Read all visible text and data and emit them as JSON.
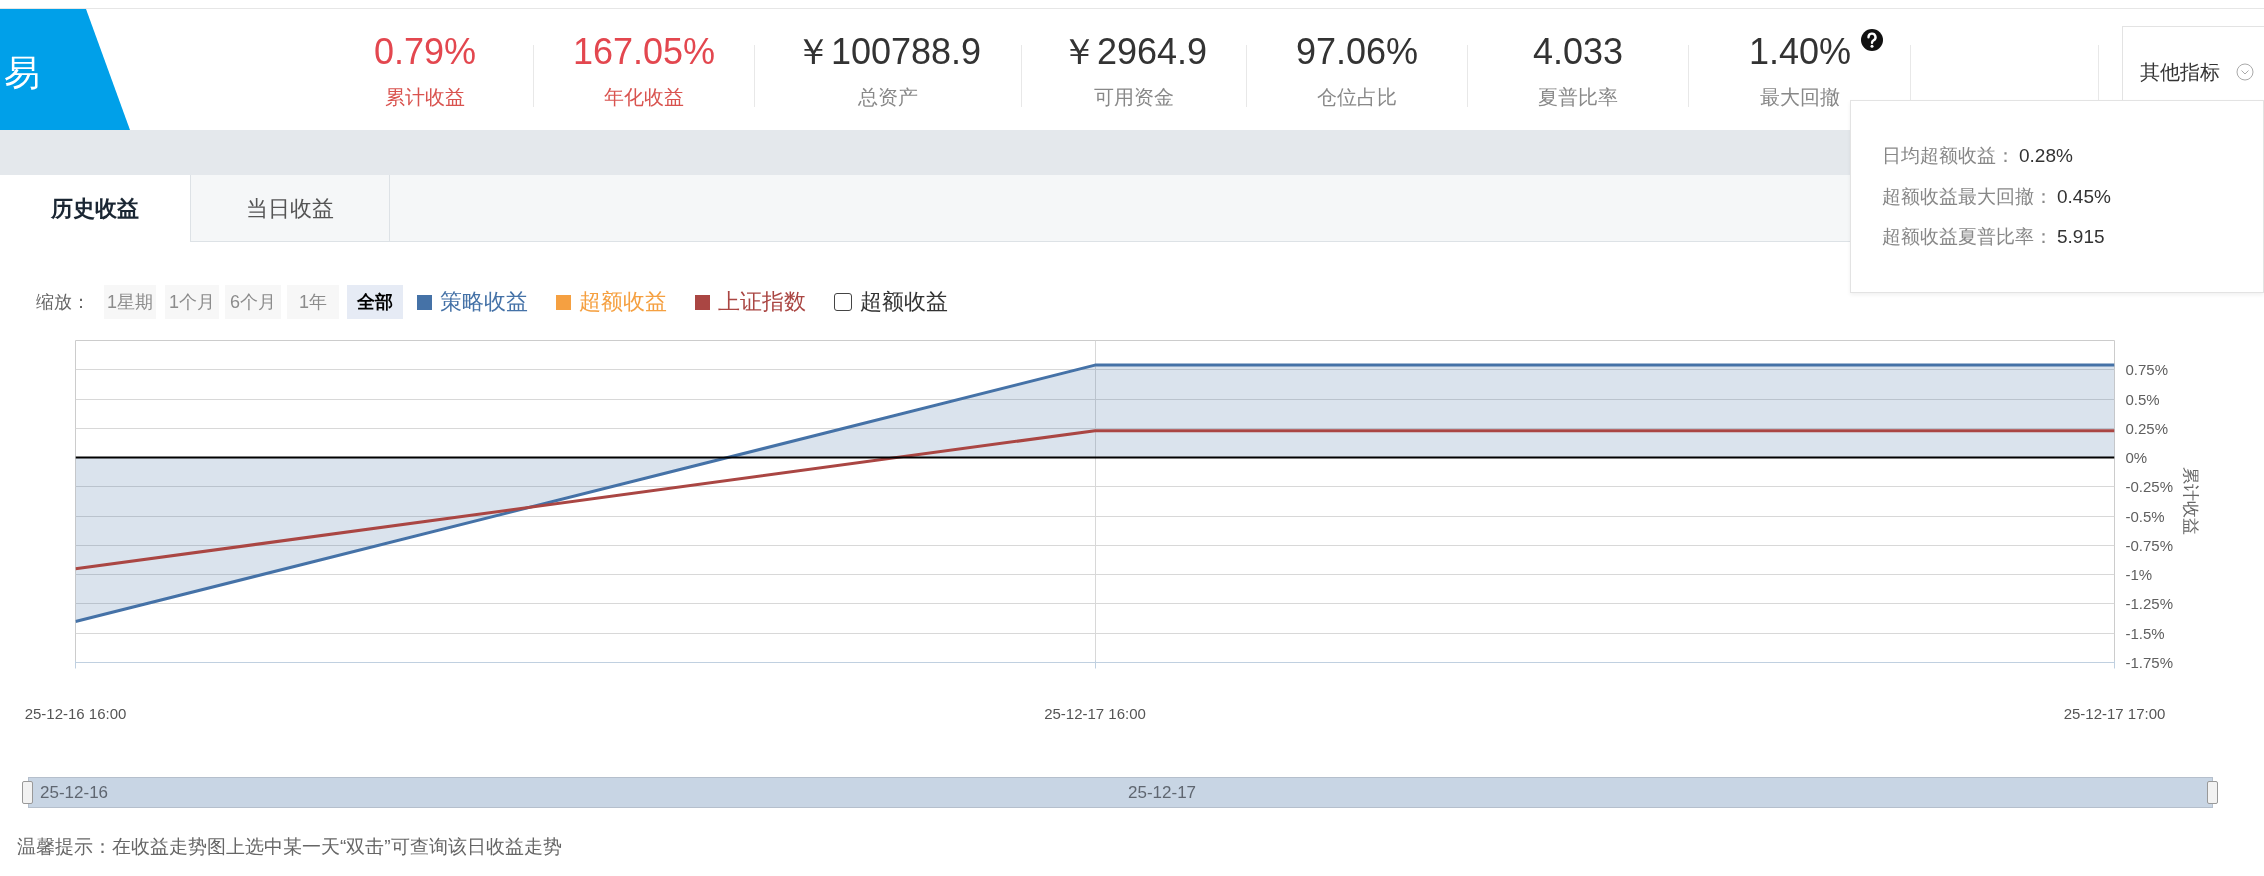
{
  "chart_data": {
    "type": "area",
    "categories": [
      "25-12-16 16:00",
      "25-12-17 16:00",
      "25-12-17 17:00"
    ],
    "series": [
      {
        "name": "策略收益",
        "color": "#4572a7",
        "values": [
          -1.4,
          0.79,
          0.79
        ]
      },
      {
        "name": "超额收益",
        "type": "line",
        "color": "#f5a041",
        "values": [
          null,
          null,
          null
        ]
      },
      {
        "name": "上证指数",
        "type": "line",
        "color": "#aa4643",
        "values": [
          -0.95,
          0.23,
          0.23
        ]
      }
    ],
    "ylabel": "累计收益",
    "ylim": [
      -1.75,
      1.0
    ],
    "yticks": [
      {
        "value": -1.75,
        "label": "-1.75%"
      },
      {
        "value": -1.5,
        "label": "-1.5%"
      },
      {
        "value": -1.25,
        "label": "-1.25%"
      },
      {
        "value": -1,
        "label": "-1%"
      },
      {
        "value": -0.75,
        "label": "-0.75%"
      },
      {
        "value": -0.5,
        "label": "-0.5%"
      },
      {
        "value": -0.25,
        "label": "-0.25%"
      },
      {
        "value": 0,
        "label": "0%"
      },
      {
        "value": 0.25,
        "label": "0.25%"
      },
      {
        "value": 0.5,
        "label": "0.5%"
      },
      {
        "value": 0.75,
        "label": "0.75%"
      }
    ],
    "grid": true,
    "legend": "top left",
    "ref_lines": [
      {
        "axis": "y",
        "value": 0,
        "color": "#000000"
      }
    ],
    "annotations": [
      "易",
      "0.79%",
      "累计收益",
      "167.05%",
      "年化收益",
      "￥100788.9",
      "总资产",
      "￥2964.9",
      "可用资金",
      "97.06%",
      "仓位占比",
      "4.033",
      "夏普比率",
      "1.40%",
      "最大回撤",
      "其他指标",
      "日均超额收益：",
      "0.28%",
      "超额收益最大回撤：",
      "0.45%",
      "超额收益夏普比率：",
      "5.915",
      "历史收益",
      "当日收益",
      "缩放：",
      "1星期",
      "1个月",
      "6个月",
      "1年",
      "全部",
      "超额收益",
      "25-12-16",
      "25-12-17",
      "温馨提示：在收益走势图上选中某一天“双击”可查询该日收益走势"
    ]
  }
}
